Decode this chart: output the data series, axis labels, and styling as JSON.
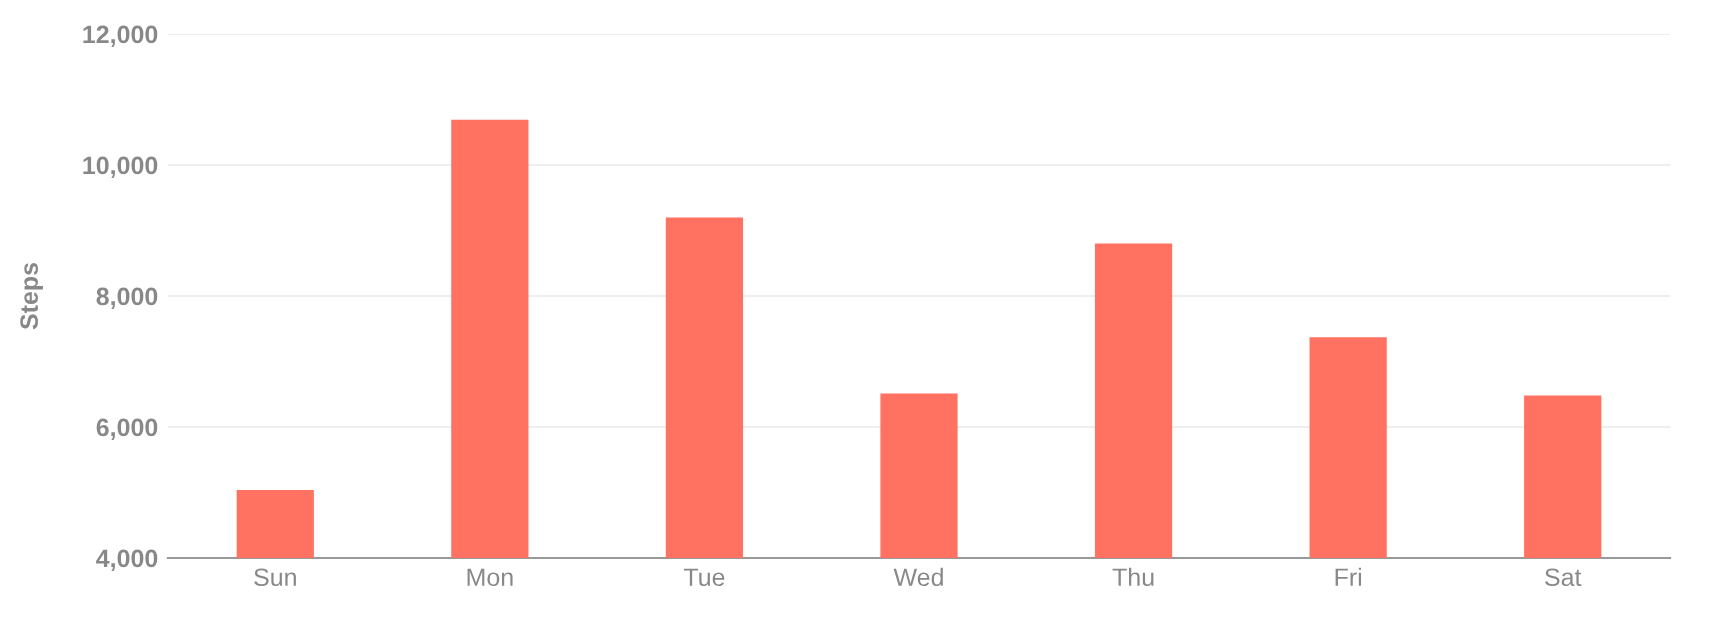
{
  "chart_data": {
    "type": "bar",
    "ylabel": "Steps",
    "categories": [
      "Sun",
      "Mon",
      "Tue",
      "Wed",
      "Thu",
      "Fri",
      "Sat"
    ],
    "values": [
      5040,
      10690,
      9200,
      6510,
      8800,
      7370,
      6480
    ],
    "color": "#ff7262",
    "ylim": [
      4000,
      12000
    ],
    "yticks": [
      {
        "value": 4000,
        "label": "4,000"
      },
      {
        "value": 6000,
        "label": "6,000"
      },
      {
        "value": 8000,
        "label": "8,000"
      },
      {
        "value": 10000,
        "label": "10,000"
      },
      {
        "value": 12000,
        "label": "12,000"
      }
    ],
    "grid": "y",
    "legend": false
  }
}
